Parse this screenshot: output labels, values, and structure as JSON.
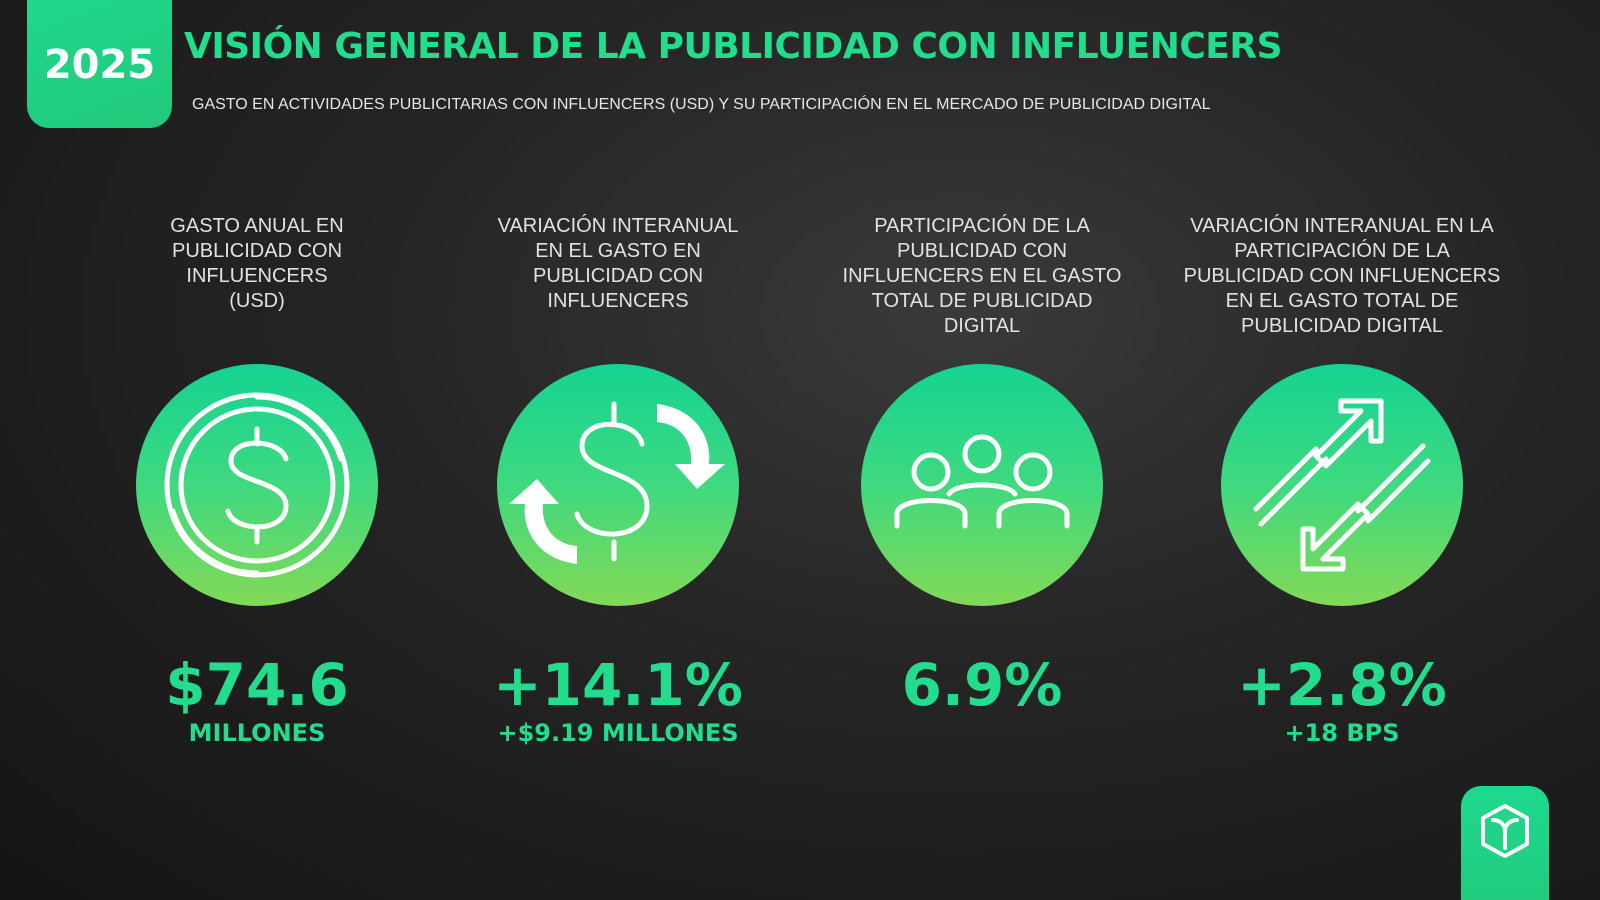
{
  "header": {
    "year": "2025",
    "title": "VISIÓN GENERAL DE LA PUBLICIDAD CON INFLUENCERS",
    "subtitle": "GASTO EN ACTIVIDADES PUBLICITARIAS CON INFLUENCERS (USD) Y SU PARTICIPACIÓN EN EL MERCADO DE PUBLICIDAD DIGITAL"
  },
  "metrics": [
    {
      "label": [
        "GASTO ANUAL EN",
        "PUBLICIDAD CON",
        "INFLUENCERS",
        "(USD)"
      ],
      "value": "$74.6",
      "sublabel": "MILLONES"
    },
    {
      "label": [
        "VARIACIÓN INTERANUAL",
        "EN EL GASTO EN",
        "PUBLICIDAD CON",
        "INFLUENCERS"
      ],
      "value": "+14.1%",
      "sublabel": "+$9.19 MILLONES"
    },
    {
      "label": [
        "PARTICIPACIÓN DE LA",
        "PUBLICIDAD CON",
        "INFLUENCERS EN EL GASTO",
        "TOTAL DE PUBLICIDAD",
        "DIGITAL"
      ],
      "value": "6.9%"
    },
    {
      "label": [
        "VARIACIÓN INTERANUAL EN LA",
        "PARTICIPACIÓN DE LA",
        "PUBLICIDAD CON INFLUENCERS",
        "EN EL GASTO TOTAL DE",
        "PUBLICIDAD DIGITAL"
      ],
      "value": "+2.8%",
      "sublabel": "+18 BPS"
    }
  ]
}
